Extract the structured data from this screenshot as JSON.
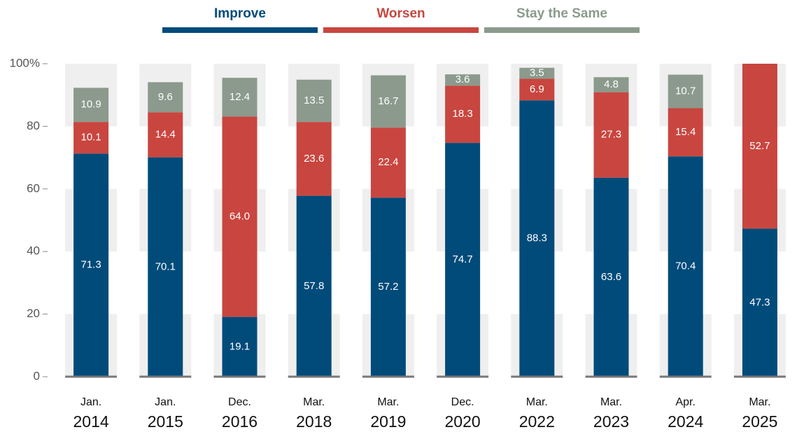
{
  "chart_data": {
    "type": "stacked_bar",
    "categories": [
      "Jan. 2014",
      "Jan. 2015",
      "Dec. 2016",
      "Mar. 2018",
      "Mar. 2019",
      "Dec. 2020",
      "Mar. 2022",
      "Mar. 2023",
      "Apr. 2024",
      "Mar. 2025"
    ],
    "series": [
      {
        "name": "Improve",
        "color": "#004b7a",
        "values": [
          71.3,
          70.1,
          19.1,
          57.8,
          57.2,
          74.7,
          88.3,
          63.6,
          70.4,
          47.3
        ]
      },
      {
        "name": "Worsen",
        "color": "#c8463f",
        "values": [
          10.1,
          14.4,
          64.0,
          23.6,
          22.4,
          18.3,
          6.9,
          27.3,
          15.4,
          52.7
        ],
        "value_labels": [
          "10.1",
          "14.4",
          "64.0",
          "23.6",
          "22.4",
          "18.3",
          "6.9",
          "27.3",
          "15.4",
          "52.7"
        ]
      },
      {
        "name": "Stay the Same",
        "color": "#8b9a8c",
        "values": [
          10.9,
          9.6,
          12.4,
          13.5,
          16.7,
          3.6,
          3.5,
          4.8,
          10.7,
          null
        ]
      }
    ],
    "ylim": [
      0,
      100
    ],
    "yticks": [
      0,
      20,
      40,
      60,
      80,
      {
        "value": 100,
        "label": "100%"
      }
    ],
    "grid": true
  }
}
